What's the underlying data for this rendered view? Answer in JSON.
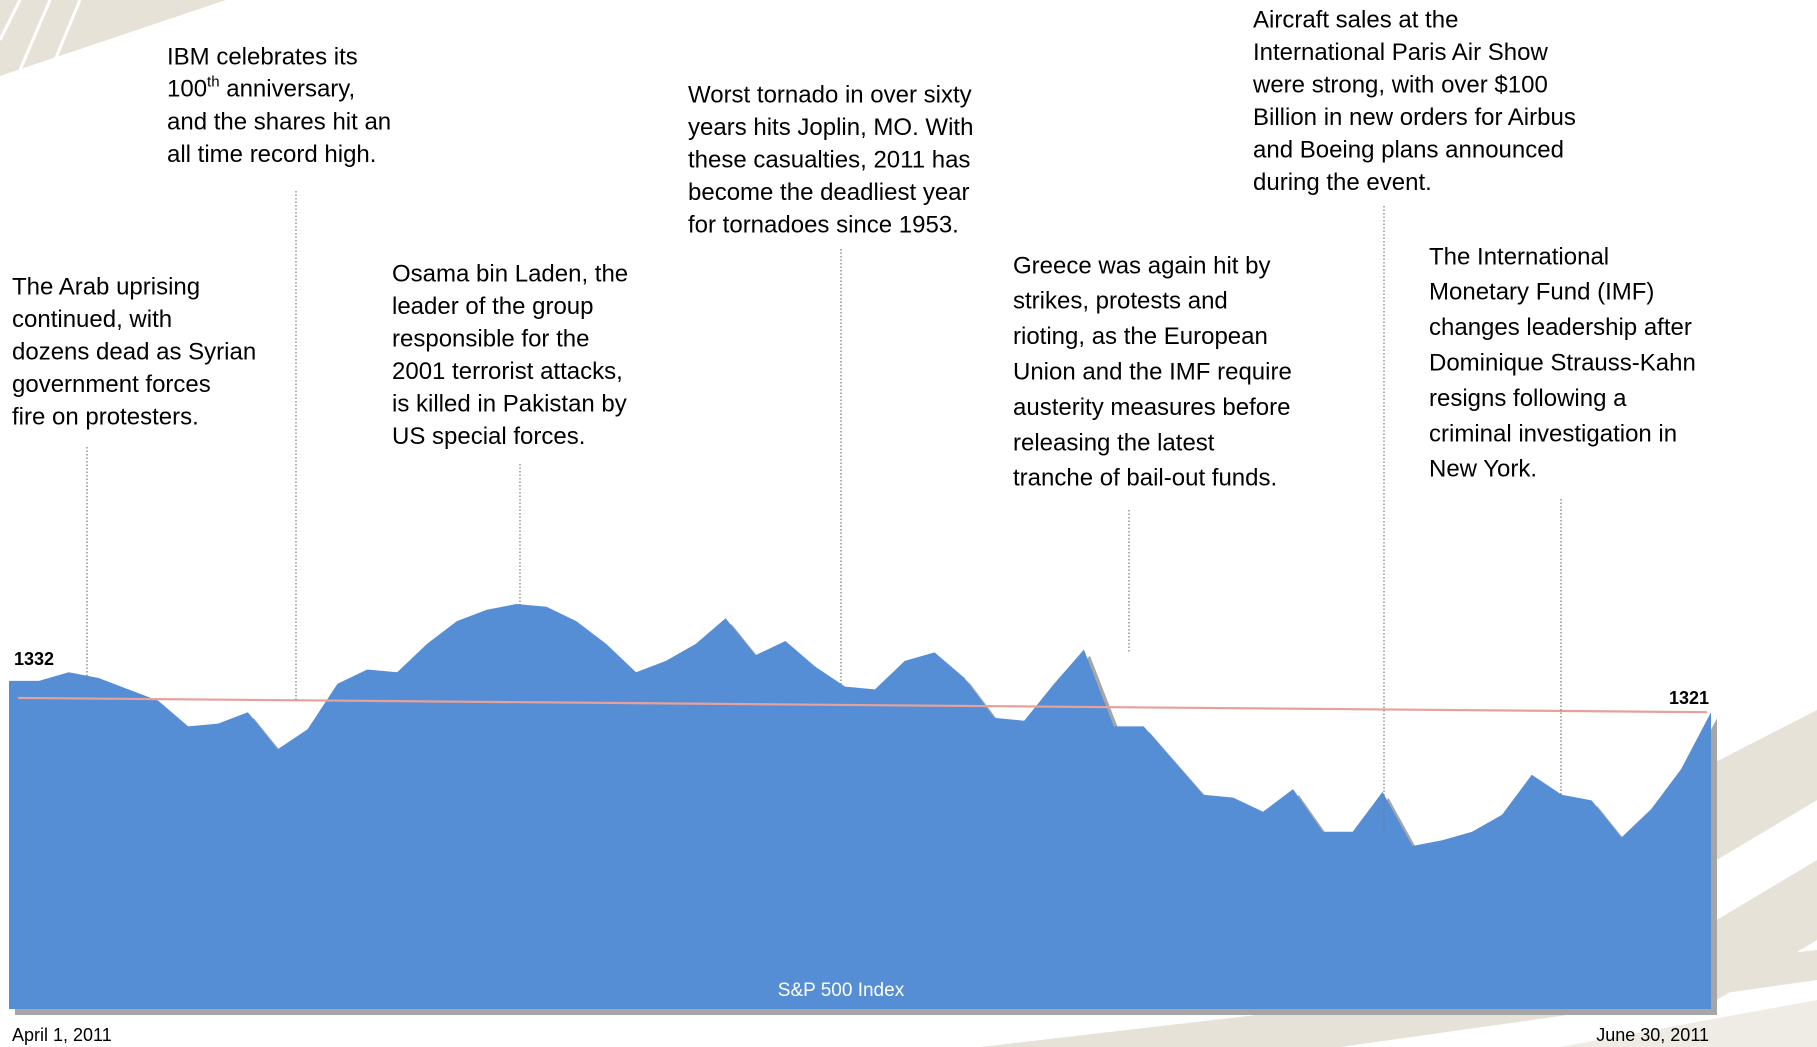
{
  "chart_data": {
    "type": "area",
    "series_name": "S&P 500 Index",
    "color": "#558ed5",
    "shadow_color": "#a6a6a6",
    "categories": [
      "April 1, 2011",
      null,
      null,
      null,
      null,
      null,
      null,
      null,
      null,
      null,
      null,
      null,
      null,
      null,
      null,
      null,
      null,
      null,
      null,
      null,
      null,
      null,
      null,
      null,
      null,
      null,
      null,
      null,
      null,
      null,
      null,
      null,
      null,
      null,
      null,
      null,
      null,
      null,
      null,
      null,
      null,
      null,
      null,
      null,
      null,
      null,
      null,
      null,
      null,
      null,
      null,
      null,
      null,
      null,
      null,
      null,
      null,
      "June 30, 2011"
    ],
    "values": [
      1332,
      1332,
      1335,
      1333,
      1329,
      1325,
      1316,
      1317,
      1321,
      1308,
      1315,
      1331,
      1336,
      1335,
      1345,
      1353,
      1357,
      1359,
      1358,
      1353,
      1345,
      1335,
      1339,
      1345,
      1354,
      1341,
      1346,
      1337,
      1330,
      1329,
      1339,
      1342,
      1333,
      1319,
      1318,
      1331,
      1343,
      1316,
      1316,
      1304,
      1292,
      1291,
      1286,
      1294,
      1279,
      1279,
      1293,
      1274,
      1276,
      1279,
      1285,
      1299,
      1292,
      1290,
      1277,
      1287,
      1301,
      1321
    ],
    "trend": {
      "values": [
        1326,
        1321
      ],
      "color": "#e6a19b"
    },
    "annotations": [
      {
        "lines": [
          "The Arab uprising",
          "continued, with",
          "dozens dead as Syrian",
          "government forces",
          "fire on protesters."
        ]
      },
      {
        "lines": [
          "IBM celebrates its",
          {
            "text": "100",
            "sup": "th",
            "rest": " anniversary,"
          },
          "and the shares hit an",
          "all time record high."
        ]
      },
      {
        "lines": [
          "Osama bin Laden, the",
          "leader of the group",
          "responsible for the",
          "2001 terrorist attacks,",
          "is killed in Pakistan by",
          "US special forces."
        ]
      },
      {
        "lines": [
          "Worst tornado in over sixty",
          "years hits Joplin, MO. With",
          "these casualties, 2011 has",
          "become the deadliest year",
          "for tornadoes since 1953."
        ]
      },
      {
        "lines": [
          "Greece was again hit by",
          "strikes, protests and",
          "rioting, as the European",
          "Union and the IMF require",
          "austerity measures before",
          "releasing the latest",
          "tranche of bail-out funds."
        ]
      },
      {
        "lines": [
          "Aircraft sales at the",
          "International Paris Air Show",
          "were strong, with over $100",
          "Billion in new orders for Airbus",
          "and Boeing plans announced",
          "during the event."
        ]
      },
      {
        "lines": [
          "The International",
          "Monetary Fund (IMF)",
          "changes leadership after",
          "Dominique Strauss-Kahn",
          "resigns following a",
          "criminal investigation in",
          "New York."
        ]
      }
    ]
  }
}
